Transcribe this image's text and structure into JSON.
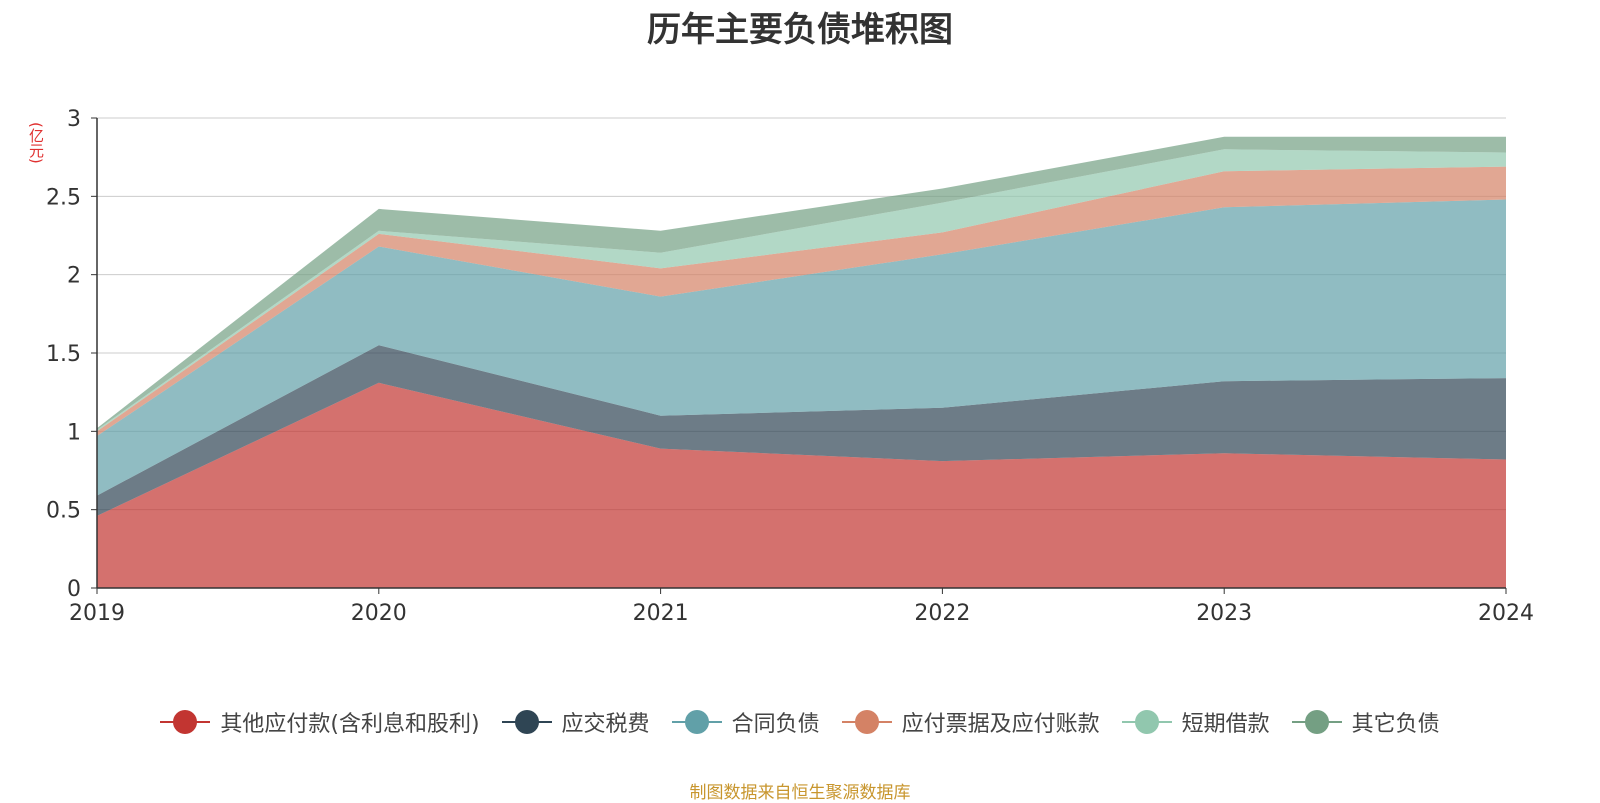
{
  "chart_data": {
    "type": "area",
    "stacked": true,
    "title": "历年主要负债堆积图",
    "unit_label": "(亿元)",
    "source": "制图数据来自恒生聚源数据库",
    "x": [
      "2019",
      "2020",
      "2021",
      "2022",
      "2023",
      "2024"
    ],
    "ylim": [
      0,
      3
    ],
    "yticks": [
      "0",
      "0.5",
      "1",
      "1.5",
      "2",
      "2.5",
      "3"
    ],
    "grid": true,
    "legend_position": "bottom",
    "colors": {
      "title": "#333333",
      "unit": "#e03030",
      "source": "#c8962e",
      "axis": "#333333",
      "grid": "#cccccc"
    },
    "series": [
      {
        "name": "其他应付款(含利息和股利)",
        "color": "#c23531",
        "values": [
          0.46,
          1.31,
          0.89,
          0.81,
          0.86,
          0.82
        ]
      },
      {
        "name": "应交税费",
        "color": "#2f4554",
        "values": [
          0.13,
          0.24,
          0.21,
          0.34,
          0.46,
          0.52
        ]
      },
      {
        "name": "合同负债",
        "color": "#61a0a8",
        "values": [
          0.38,
          0.63,
          0.76,
          0.98,
          1.11,
          1.14
        ]
      },
      {
        "name": "应付票据及应付账款",
        "color": "#d48265",
        "values": [
          0.03,
          0.08,
          0.18,
          0.14,
          0.23,
          0.21
        ]
      },
      {
        "name": "短期借款",
        "color": "#91c7ae",
        "values": [
          0.01,
          0.02,
          0.1,
          0.19,
          0.14,
          0.09
        ]
      },
      {
        "name": "其它负债",
        "color": "#749f83",
        "values": [
          0.01,
          0.14,
          0.14,
          0.09,
          0.08,
          0.1
        ]
      }
    ]
  }
}
